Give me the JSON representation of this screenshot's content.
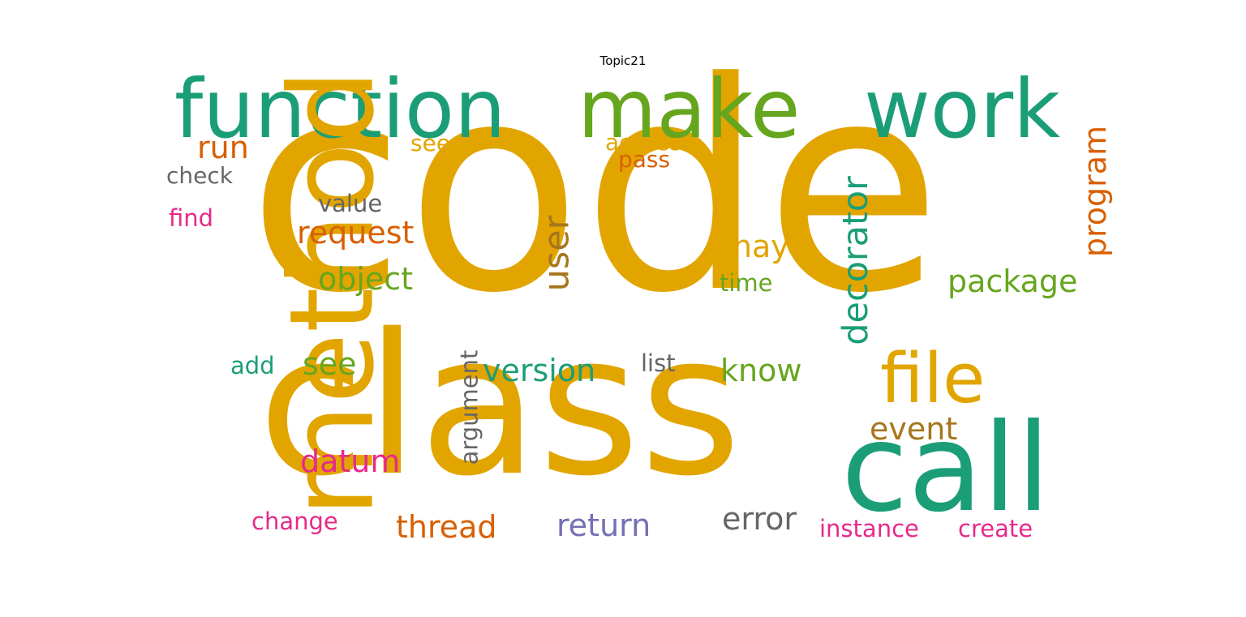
{
  "title": "Topic21",
  "colors": {
    "gold": "#e2a500",
    "teal": "#1b9e77",
    "green": "#66a61e",
    "orange": "#d95f02",
    "pink": "#e7298a",
    "purple": "#7570b3",
    "gray": "#666666",
    "brown": "#a6761d"
  },
  "words": [
    {
      "text": "code",
      "color": "#e2a500"
    },
    {
      "text": "class",
      "color": "#e2a500"
    },
    {
      "text": "function",
      "color": "#1b9e77"
    },
    {
      "text": "make",
      "color": "#66a61e"
    },
    {
      "text": "work",
      "color": "#1b9e77"
    },
    {
      "text": "call",
      "color": "#1b9e77"
    },
    {
      "text": "method",
      "color": "#e2a500"
    },
    {
      "text": "file",
      "color": "#e2a500"
    },
    {
      "text": "run",
      "color": "#d95f02"
    },
    {
      "text": "seem",
      "color": "#e2a500"
    },
    {
      "text": "access",
      "color": "#e2a500"
    },
    {
      "text": "pass",
      "color": "#d95f02"
    },
    {
      "text": "check",
      "color": "#666666"
    },
    {
      "text": "value",
      "color": "#666666"
    },
    {
      "text": "find",
      "color": "#e7298a"
    },
    {
      "text": "request",
      "color": "#d95f02"
    },
    {
      "text": "object",
      "color": "#66a61e"
    },
    {
      "text": "user",
      "color": "#a6761d"
    },
    {
      "text": "may",
      "color": "#e2a500"
    },
    {
      "text": "time",
      "color": "#66a61e"
    },
    {
      "text": "decorator",
      "color": "#1b9e77"
    },
    {
      "text": "program",
      "color": "#d95f02"
    },
    {
      "text": "package",
      "color": "#66a61e"
    },
    {
      "text": "add",
      "color": "#1b9e77"
    },
    {
      "text": "see",
      "color": "#66a61e"
    },
    {
      "text": "argument",
      "color": "#666666"
    },
    {
      "text": "version",
      "color": "#1b9e77"
    },
    {
      "text": "list",
      "color": "#666666"
    },
    {
      "text": "know",
      "color": "#66a61e"
    },
    {
      "text": "event",
      "color": "#a6761d"
    },
    {
      "text": "datum",
      "color": "#e7298a"
    },
    {
      "text": "change",
      "color": "#e7298a"
    },
    {
      "text": "thread",
      "color": "#d95f02"
    },
    {
      "text": "return",
      "color": "#7570b3"
    },
    {
      "text": "error",
      "color": "#666666"
    },
    {
      "text": "instance",
      "color": "#e7298a"
    },
    {
      "text": "create",
      "color": "#e7298a"
    }
  ]
}
